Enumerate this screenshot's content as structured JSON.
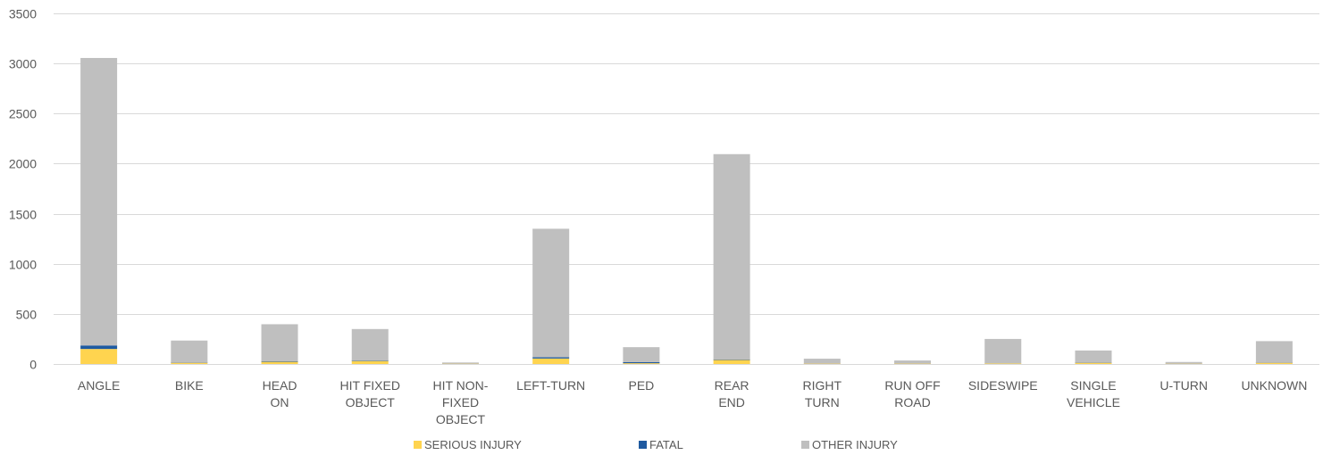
{
  "chart_data": {
    "type": "bar",
    "stacked": true,
    "categories": [
      [
        "ANGLE"
      ],
      [
        "BIKE"
      ],
      [
        "HEAD",
        "ON"
      ],
      [
        "HIT FIXED",
        "OBJECT"
      ],
      [
        "HIT NON-",
        "FIXED",
        "OBJECT"
      ],
      [
        "LEFT-TURN"
      ],
      [
        "PED"
      ],
      [
        "REAR",
        "END"
      ],
      [
        "RIGHT",
        "TURN"
      ],
      [
        "RUN OFF",
        "ROAD"
      ],
      [
        "SIDESWIPE"
      ],
      [
        "SINGLE",
        "VEHICLE"
      ],
      [
        "U-TURN"
      ],
      [
        "UNKNOWN"
      ]
    ],
    "series": [
      {
        "name": "SERIOUS INJURY",
        "color": "#FFD44F",
        "values": [
          150,
          12,
          22,
          30,
          2,
          55,
          8,
          40,
          3,
          3,
          5,
          12,
          2,
          12
        ]
      },
      {
        "name": "FATAL",
        "color": "#1F5AA0",
        "values": [
          35,
          2,
          5,
          4,
          0,
          12,
          10,
          4,
          0,
          0,
          0,
          2,
          0,
          1
        ]
      },
      {
        "name": "OTHER INJURY",
        "color": "#BFBFBF",
        "values": [
          2870,
          220,
          370,
          315,
          13,
          1283,
          150,
          2051,
          50,
          32,
          245,
          121,
          18,
          215
        ]
      }
    ],
    "yticks": [
      0,
      500,
      1000,
      1500,
      2000,
      2500,
      3000,
      3500
    ],
    "ylim": [
      0,
      3500
    ],
    "grid": true,
    "legend_position": "bottom"
  }
}
